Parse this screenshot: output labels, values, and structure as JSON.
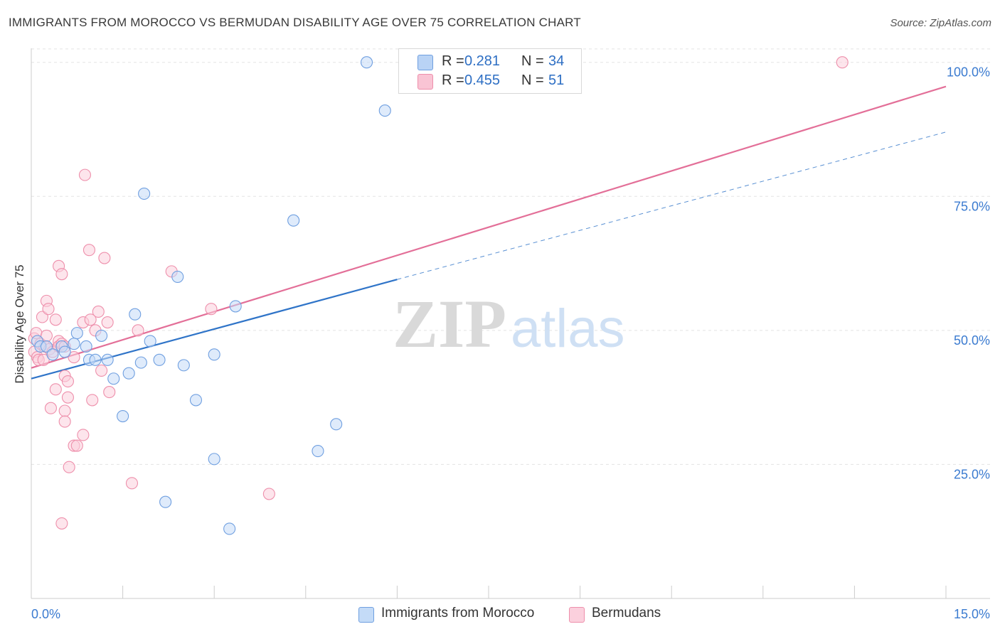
{
  "title": "IMMIGRANTS FROM MOROCCO VS BERMUDAN DISABILITY AGE OVER 75 CORRELATION CHART",
  "source": "Source: ZipAtlas.com",
  "watermark": {
    "zip": "ZIP",
    "atlas": "atlas"
  },
  "legend": {
    "r_label": "R =",
    "n_label": "N =",
    "rows": [
      {
        "r": "0.281",
        "n": "34",
        "fill": "#b9d3f5",
        "stroke": "#6f9fe0"
      },
      {
        "r": "0.455",
        "n": "51",
        "fill": "#f9c4d4",
        "stroke": "#ee8fab"
      }
    ]
  },
  "chart_data": {
    "type": "scatter",
    "title": "IMMIGRANTS FROM MOROCCO VS BERMUDAN DISABILITY AGE OVER 75 CORRELATION CHART",
    "xlabel": "",
    "ylabel": "Disability Age Over 75",
    "xlim": [
      0,
      15
    ],
    "ylim": [
      0,
      105
    ],
    "x_ticks": [
      "0.0%",
      "15.0%"
    ],
    "y_ticks": [
      {
        "value": 25,
        "label": "25.0%"
      },
      {
        "value": 50,
        "label": "50.0%"
      },
      {
        "value": 75,
        "label": "75.0%"
      },
      {
        "value": 100,
        "label": "100.0%"
      }
    ],
    "grid": true,
    "legend_position": "top-center",
    "series": [
      {
        "name": "Immigrants from Morocco",
        "color": "#6f9fe0",
        "fill": "#c4dbf7",
        "line_color": "#2f74c8",
        "r": 0.281,
        "n": 34,
        "trend": {
          "x0": 0,
          "y0": 41,
          "x1": 6,
          "y1": 59.5,
          "dashed_to_x": 15,
          "dashed_to_y": 87
        },
        "points": [
          {
            "x": 0.1,
            "y": 48
          },
          {
            "x": 0.15,
            "y": 47
          },
          {
            "x": 0.25,
            "y": 47
          },
          {
            "x": 0.35,
            "y": 45.5
          },
          {
            "x": 0.5,
            "y": 47
          },
          {
            "x": 0.55,
            "y": 46
          },
          {
            "x": 0.7,
            "y": 47.5
          },
          {
            "x": 0.75,
            "y": 49.5
          },
          {
            "x": 0.9,
            "y": 47
          },
          {
            "x": 0.95,
            "y": 44.5
          },
          {
            "x": 1.05,
            "y": 44.5
          },
          {
            "x": 1.15,
            "y": 49
          },
          {
            "x": 1.25,
            "y": 44.5
          },
          {
            "x": 1.35,
            "y": 41
          },
          {
            "x": 1.5,
            "y": 34
          },
          {
            "x": 1.6,
            "y": 42
          },
          {
            "x": 1.7,
            "y": 53
          },
          {
            "x": 1.8,
            "y": 44
          },
          {
            "x": 1.85,
            "y": 75.5
          },
          {
            "x": 1.95,
            "y": 48
          },
          {
            "x": 2.1,
            "y": 44.5
          },
          {
            "x": 2.2,
            "y": 18
          },
          {
            "x": 2.4,
            "y": 60
          },
          {
            "x": 2.5,
            "y": 43.5
          },
          {
            "x": 2.7,
            "y": 37
          },
          {
            "x": 3.0,
            "y": 26
          },
          {
            "x": 3.0,
            "y": 45.5
          },
          {
            "x": 3.25,
            "y": 13
          },
          {
            "x": 3.35,
            "y": 54.5
          },
          {
            "x": 4.3,
            "y": 70.5
          },
          {
            "x": 4.7,
            "y": 27.5
          },
          {
            "x": 5.0,
            "y": 32.5
          },
          {
            "x": 5.5,
            "y": 100
          },
          {
            "x": 5.8,
            "y": 91
          }
        ]
      },
      {
        "name": "Bermudans",
        "color": "#ee8fab",
        "fill": "#fbd0dd",
        "line_color": "#e36f98",
        "r": 0.455,
        "n": 51,
        "trend": {
          "x0": 0,
          "y0": 43,
          "x1": 15,
          "y1": 95.5
        },
        "points": [
          {
            "x": 0.05,
            "y": 46
          },
          {
            "x": 0.05,
            "y": 48.5
          },
          {
            "x": 0.08,
            "y": 49.5
          },
          {
            "x": 0.1,
            "y": 45
          },
          {
            "x": 0.12,
            "y": 44.5
          },
          {
            "x": 0.15,
            "y": 47.5
          },
          {
            "x": 0.18,
            "y": 52.5
          },
          {
            "x": 0.2,
            "y": 44.5
          },
          {
            "x": 0.22,
            "y": 47
          },
          {
            "x": 0.25,
            "y": 49
          },
          {
            "x": 0.25,
            "y": 55.5
          },
          {
            "x": 0.28,
            "y": 54
          },
          {
            "x": 0.3,
            "y": 46.5
          },
          {
            "x": 0.32,
            "y": 35.5
          },
          {
            "x": 0.35,
            "y": 46
          },
          {
            "x": 0.4,
            "y": 52
          },
          {
            "x": 0.4,
            "y": 39
          },
          {
            "x": 0.45,
            "y": 48
          },
          {
            "x": 0.45,
            "y": 47
          },
          {
            "x": 0.45,
            "y": 62
          },
          {
            "x": 0.5,
            "y": 60.5
          },
          {
            "x": 0.5,
            "y": 47.5
          },
          {
            "x": 0.5,
            "y": 14
          },
          {
            "x": 0.55,
            "y": 41.5
          },
          {
            "x": 0.55,
            "y": 47
          },
          {
            "x": 0.55,
            "y": 35
          },
          {
            "x": 0.55,
            "y": 33
          },
          {
            "x": 0.6,
            "y": 37.5
          },
          {
            "x": 0.6,
            "y": 40.5
          },
          {
            "x": 0.62,
            "y": 24.5
          },
          {
            "x": 0.7,
            "y": 45
          },
          {
            "x": 0.7,
            "y": 28.5
          },
          {
            "x": 0.75,
            "y": 28.5
          },
          {
            "x": 0.85,
            "y": 51.5
          },
          {
            "x": 0.85,
            "y": 30.5
          },
          {
            "x": 0.88,
            "y": 79
          },
          {
            "x": 0.95,
            "y": 65
          },
          {
            "x": 0.97,
            "y": 52
          },
          {
            "x": 1.0,
            "y": 37
          },
          {
            "x": 1.05,
            "y": 50
          },
          {
            "x": 1.1,
            "y": 53.5
          },
          {
            "x": 1.15,
            "y": 42.5
          },
          {
            "x": 1.2,
            "y": 63.5
          },
          {
            "x": 1.25,
            "y": 51.5
          },
          {
            "x": 1.28,
            "y": 38.5
          },
          {
            "x": 1.65,
            "y": 21.5
          },
          {
            "x": 1.75,
            "y": 50
          },
          {
            "x": 2.3,
            "y": 61
          },
          {
            "x": 2.95,
            "y": 54
          },
          {
            "x": 3.9,
            "y": 19.5
          },
          {
            "x": 13.3,
            "y": 100
          }
        ]
      }
    ]
  },
  "bottom_legend": [
    {
      "label": "Immigrants from Morocco",
      "fill": "#c4dbf7",
      "stroke": "#6f9fe0"
    },
    {
      "label": "Bermudans",
      "fill": "#fbd0dd",
      "stroke": "#ee8fab"
    }
  ]
}
